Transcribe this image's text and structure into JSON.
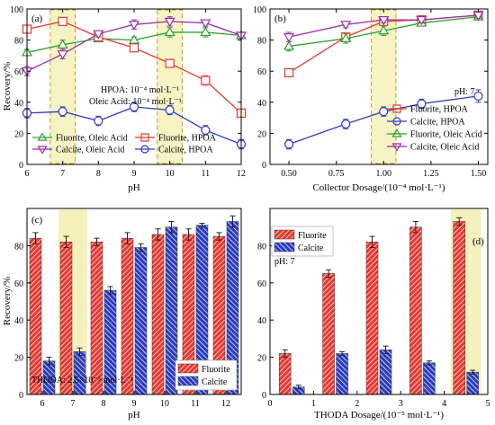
{
  "chart_data": [
    {
      "panel": "(a)",
      "type": "line",
      "xlabel": "pH",
      "ylabel": "Recovery/%",
      "xlim": [
        6,
        12
      ],
      "ylim": [
        0,
        100
      ],
      "xticks": [
        "6",
        "7",
        "8",
        "9",
        "10",
        "11",
        "12"
      ],
      "yticks": [
        "0",
        "20",
        "40",
        "60",
        "80",
        "100"
      ],
      "highlight_x": [
        7,
        10
      ],
      "annotations": [
        "HPOA: 10⁻⁴ mol·L⁻¹",
        "Oleic Acid: 10⁻⁴ mol·L⁻¹"
      ],
      "legend_position": "bottom-left",
      "legend_columns": 2,
      "x": [
        6,
        7,
        8,
        9,
        10,
        11,
        12
      ],
      "series": [
        {
          "name": "Fluorite, Oleic Acid",
          "color": "#2ca02c",
          "marker": "triangle-up",
          "values": [
            72,
            77,
            81,
            80,
            85,
            85,
            83
          ],
          "err": [
            2,
            3,
            2,
            2,
            3,
            3,
            2
          ]
        },
        {
          "name": "Fluorite, HPOA",
          "color": "#e8382f",
          "marker": "square",
          "values": [
            87,
            92,
            82,
            75,
            65,
            54,
            33
          ],
          "err": [
            2,
            2,
            2,
            2,
            2,
            3,
            2
          ]
        },
        {
          "name": "Calcite, Oleic Acid",
          "color": "#9b2fa6",
          "marker": "triangle-down",
          "values": [
            60,
            71,
            84,
            90,
            92,
            91,
            83
          ],
          "err": [
            3,
            3,
            2,
            3,
            3,
            2,
            2
          ]
        },
        {
          "name": "Calcite, HPOA",
          "color": "#2b3bbf",
          "marker": "circle",
          "values": [
            33,
            34,
            28,
            37,
            35,
            22,
            13
          ],
          "err": [
            3,
            3,
            3,
            3,
            3,
            3,
            3
          ]
        }
      ]
    },
    {
      "panel": "(b)",
      "type": "line",
      "xlabel": "Collector Dosage/(10⁻⁴ mol·L⁻¹)",
      "ylabel": "",
      "xlim": [
        0.4,
        1.55
      ],
      "ylim": [
        0,
        100
      ],
      "xticks": [
        "0.50",
        "0.75",
        "1.00",
        "1.25",
        "1.50"
      ],
      "yticks": [
        "0",
        "20",
        "40",
        "60",
        "80",
        "100"
      ],
      "highlight_x": [
        1.0
      ],
      "annotations": [
        "pH: 7"
      ],
      "legend_position": "center-right",
      "x": [
        0.5,
        0.8,
        1.0,
        1.2,
        1.5
      ],
      "series": [
        {
          "name": "Fluorite, HPOA",
          "color": "#e8382f",
          "marker": "square",
          "values": [
            59,
            82,
            92,
            93,
            96
          ],
          "err": [
            2,
            2,
            2,
            2,
            2
          ]
        },
        {
          "name": "Calcite, HPOA",
          "color": "#2b3bbf",
          "marker": "circle",
          "values": [
            13,
            26,
            34,
            39,
            44
          ],
          "err": [
            3,
            3,
            3,
            3,
            4
          ]
        },
        {
          "name": "Fluorite, Oleic Acid",
          "color": "#2ca02c",
          "marker": "triangle-up",
          "values": [
            76,
            81,
            86,
            91,
            95
          ],
          "err": [
            3,
            3,
            3,
            2,
            2
          ]
        },
        {
          "name": "Calcite, Oleic Acid",
          "color": "#9b2fa6",
          "marker": "triangle-down",
          "values": [
            82,
            90,
            93,
            93,
            96
          ],
          "err": [
            3,
            2,
            2,
            2,
            2
          ]
        }
      ]
    },
    {
      "panel": "(c)",
      "type": "bar",
      "xlabel": "pH",
      "ylabel": "Recovery/%",
      "ylim": [
        0,
        100
      ],
      "yticks": [
        "0",
        "20",
        "40",
        "60",
        "80"
      ],
      "categories": [
        "6",
        "7",
        "8",
        "9",
        "10",
        "11",
        "12"
      ],
      "highlight_category": "7",
      "annotations": [
        "THODA: 2.5×10⁻⁵ mol·L⁻¹"
      ],
      "legend_position": "bottom-right",
      "series": [
        {
          "name": "Fluorite",
          "color": "#e8382f",
          "values": [
            84,
            82,
            82,
            84,
            86,
            86,
            85
          ],
          "err": [
            3,
            3,
            2,
            3,
            3,
            3,
            2
          ]
        },
        {
          "name": "Calcite",
          "color": "#2b3bbf",
          "values": [
            18,
            23,
            56,
            79,
            90,
            91,
            93
          ],
          "err": [
            2,
            2,
            2,
            2,
            3,
            1,
            3
          ]
        }
      ]
    },
    {
      "panel": "(d)",
      "type": "bar",
      "xlabel": "THODA Dosage/(10⁻⁵ mol·L⁻¹)",
      "ylabel": "",
      "xlim": [
        0,
        5
      ],
      "ylim": [
        0,
        100
      ],
      "xticks": [
        "0",
        "1",
        "2",
        "3",
        "4",
        "5"
      ],
      "yticks": [
        "0",
        "20",
        "40",
        "60",
        "80"
      ],
      "highlight_x": [
        4.5
      ],
      "annotations": [
        "pH: 7"
      ],
      "legend_position": "top-left",
      "x": [
        0.5,
        1.5,
        2.5,
        3.5,
        4.5
      ],
      "series": [
        {
          "name": "Fluorite",
          "color": "#e8382f",
          "values": [
            22,
            65,
            82,
            90,
            93
          ],
          "err": [
            2,
            2,
            3,
            3,
            2
          ]
        },
        {
          "name": "Calcite",
          "color": "#2b3bbf",
          "values": [
            4,
            22,
            24,
            17,
            12
          ],
          "err": [
            1,
            1,
            2,
            1,
            1
          ]
        }
      ]
    }
  ]
}
